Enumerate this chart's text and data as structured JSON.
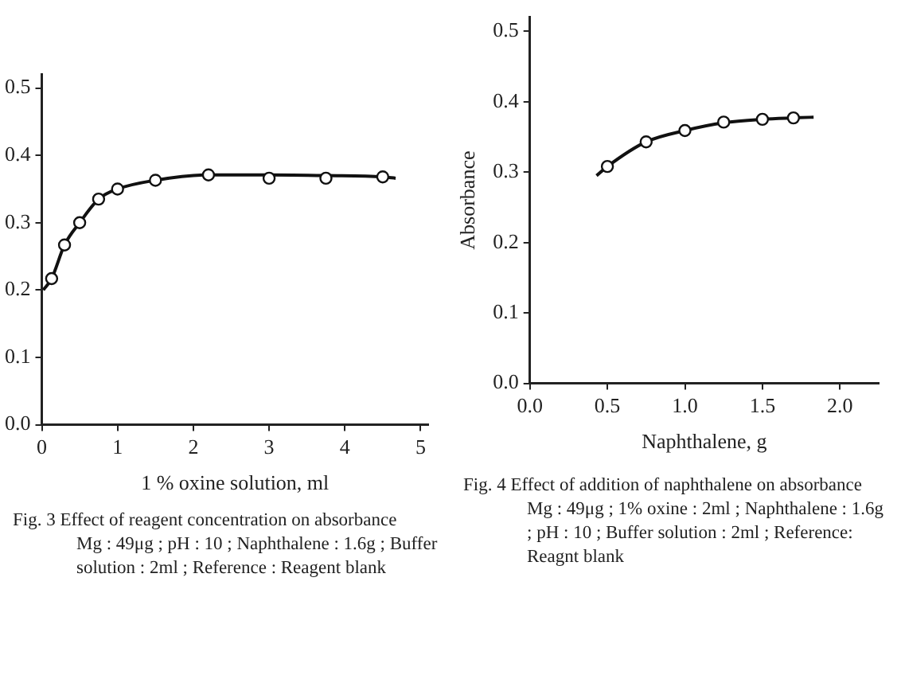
{
  "chart_data": [
    {
      "type": "line",
      "title": "Fig. 3 Effect of reagent concentration on absorbance",
      "xlabel": "1 % oxine solution, ml",
      "annotations": [
        "Mg : 49μg ; pH : 10 ; Naphthalene : 1.6g ; Buffer solution : 2ml ; Reference : Reagent blank"
      ],
      "xlim": [
        0,
        5.1
      ],
      "ylim": [
        0,
        0.52
      ],
      "xticks": [
        0,
        1,
        2,
        3,
        4,
        5
      ],
      "yticks": [
        {
          "value": 0,
          "label": "0.0"
        },
        {
          "value": 0.1,
          "label": "0.1"
        },
        {
          "value": 0.2,
          "label": "0.2"
        },
        {
          "value": 0.3,
          "label": "0.3"
        },
        {
          "value": 0.4,
          "label": "0.4"
        },
        {
          "value": 0.5,
          "label": "0.5"
        }
      ],
      "grid": false,
      "series": [
        {
          "type": "scatter",
          "marker": "circle",
          "color": "#111111",
          "x": [
            0.13,
            0.3,
            0.5,
            0.75,
            1.0,
            1.5,
            2.2,
            3.0,
            3.75,
            4.5
          ],
          "values": [
            0.217,
            0.267,
            0.3,
            0.335,
            0.35,
            0.363,
            0.371,
            0.366,
            0.366,
            0.368
          ]
        },
        {
          "type": "line",
          "marker": "none",
          "line_style": "solid",
          "color": "#111111",
          "x": [
            0.02,
            0.13,
            0.3,
            0.5,
            0.75,
            1.0,
            1.5,
            2.2,
            3.0,
            3.75,
            4.5,
            4.67
          ],
          "values": [
            0.2,
            0.217,
            0.267,
            0.3,
            0.335,
            0.35,
            0.363,
            0.371,
            0.371,
            0.37,
            0.368,
            0.366
          ]
        }
      ]
    },
    {
      "type": "line",
      "title": "Fig. 4 Effect of addition of naphthalene on absorbance",
      "xlabel": "Naphthalene, g",
      "ylabel": "Absorbance",
      "annotations": [
        "Mg : 49μg ; 1% oxine : 2ml ; Naphthalene : 1.6g ; pH : 10 ; Buffer solution : 2ml ; Reference: Reagnt blank"
      ],
      "xlim": [
        0,
        2.25
      ],
      "ylim": [
        0,
        0.52
      ],
      "xticks": [
        {
          "value": 0,
          "label": "0.0"
        },
        {
          "value": 0.5,
          "label": "0.5"
        },
        {
          "value": 1,
          "label": "1.0"
        },
        {
          "value": 1.5,
          "label": "1.5"
        },
        {
          "value": 2,
          "label": "2.0"
        }
      ],
      "yticks": [
        {
          "value": 0,
          "label": "0.0"
        },
        {
          "value": 0.1,
          "label": "0.1"
        },
        {
          "value": 0.2,
          "label": "0.2"
        },
        {
          "value": 0.3,
          "label": "0.3"
        },
        {
          "value": 0.4,
          "label": "0.4"
        },
        {
          "value": 0.5,
          "label": "0.5"
        }
      ],
      "grid": false,
      "series": [
        {
          "type": "scatter",
          "marker": "circle",
          "color": "#111111",
          "x": [
            0.5,
            0.75,
            1.0,
            1.25,
            1.5,
            1.7
          ],
          "values": [
            0.308,
            0.343,
            0.359,
            0.371,
            0.375,
            0.377
          ]
        },
        {
          "type": "line",
          "marker": "none",
          "line_style": "solid",
          "color": "#111111",
          "x": [
            0.43,
            0.5,
            0.75,
            1.0,
            1.25,
            1.5,
            1.7,
            1.83
          ],
          "values": [
            0.295,
            0.308,
            0.343,
            0.359,
            0.37,
            0.375,
            0.377,
            0.378
          ]
        }
      ]
    }
  ]
}
